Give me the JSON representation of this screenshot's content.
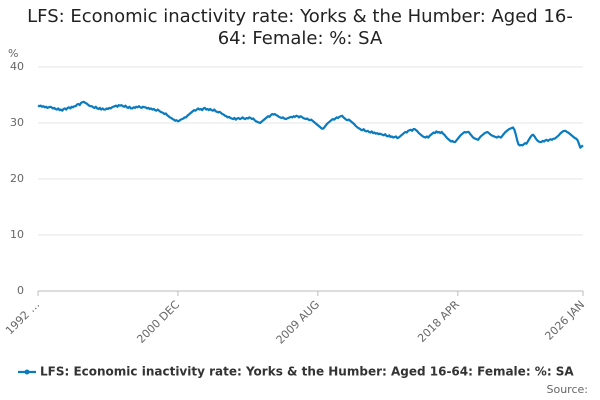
{
  "chart_data": {
    "type": "line",
    "title": "LFS: Economic inactivity rate: Yorks & the Humber: Aged 16-64: Female: %: SA",
    "y_label": "%",
    "source": "Source:",
    "ylim": [
      0,
      40
    ],
    "yticks": [
      0,
      10,
      20,
      30,
      40
    ],
    "grid": true,
    "legend": "bottom",
    "categories": [
      "1992 …",
      null,
      null,
      null,
      null,
      null,
      null,
      null,
      null,
      null,
      null,
      null,
      null,
      null,
      null,
      null,
      null,
      null,
      null,
      null,
      null,
      null,
      null,
      null,
      null,
      null,
      null,
      null,
      null,
      null,
      null,
      null,
      null,
      null,
      null,
      null,
      null,
      null,
      null,
      null,
      null,
      null,
      null,
      null,
      null,
      null,
      null,
      null,
      null,
      null,
      null,
      null,
      null,
      null,
      null,
      null,
      null,
      null,
      null,
      null,
      null,
      null,
      null,
      null,
      null,
      null,
      null,
      null,
      null,
      null,
      null,
      null,
      null,
      null,
      null,
      null,
      null,
      null,
      null,
      null,
      null,
      null,
      null,
      null,
      null,
      null,
      null,
      null,
      null,
      null,
      null,
      null,
      null,
      null,
      null,
      null,
      null,
      null,
      null,
      null,
      null,
      null,
      null,
      null,
      "2000 DEC",
      null,
      null,
      null,
      null,
      null,
      null,
      null,
      null,
      null,
      null,
      null,
      null,
      null,
      null,
      null,
      null,
      null,
      null,
      null,
      null,
      null,
      null,
      null,
      null,
      null,
      null,
      null,
      null,
      null,
      null,
      null,
      null,
      null,
      null,
      null,
      null,
      null,
      null,
      null,
      null,
      null,
      null,
      null,
      null,
      null,
      null,
      null,
      null,
      null,
      null,
      null,
      null,
      null,
      null,
      null,
      null,
      null,
      null,
      null,
      null,
      null,
      null,
      null,
      null,
      null,
      null,
      null,
      null,
      null,
      null,
      null,
      null,
      null,
      null,
      null,
      null,
      null,
      null,
      null,
      null,
      null,
      null,
      null,
      null,
      null,
      null,
      null,
      null,
      null,
      null,
      null,
      null,
      null,
      null,
      null,
      null,
      null,
      null,
      null,
      null,
      null,
      null,
      null,
      "2009 AUG",
      null,
      null,
      null,
      null,
      null,
      null,
      null,
      null,
      null,
      null,
      null,
      null,
      null,
      null,
      null,
      null,
      null,
      null,
      null,
      null,
      null,
      null,
      null,
      null,
      null,
      null,
      null,
      null,
      null,
      null,
      null,
      null,
      null,
      null,
      null,
      null,
      null,
      null,
      null,
      null,
      null,
      null,
      null,
      null,
      null,
      null,
      null,
      null,
      null,
      null,
      null,
      null,
      null,
      null,
      null,
      null,
      null,
      null,
      null,
      null,
      null,
      null,
      null,
      null,
      null,
      null,
      null,
      null,
      null,
      null,
      null,
      null,
      null,
      null,
      null,
      null,
      null,
      null,
      null,
      null,
      null,
      null,
      null,
      null,
      null,
      null,
      null,
      null,
      null,
      null,
      null,
      null,
      null,
      null,
      null,
      null,
      null,
      null,
      null,
      null,
      null,
      null,
      null,
      "2018 APR",
      null,
      null,
      null,
      null,
      null,
      null,
      null,
      null,
      null,
      null,
      null,
      null,
      null,
      null,
      null,
      null,
      null,
      null,
      null,
      null,
      null,
      null,
      null,
      null,
      null,
      null,
      null,
      null,
      null,
      null,
      null,
      null,
      null,
      null,
      null,
      null,
      null,
      null,
      null,
      null,
      null,
      null,
      null,
      null,
      null,
      null,
      null,
      null,
      null,
      null,
      null,
      null,
      null,
      null,
      null,
      null,
      null,
      null,
      null,
      null,
      null,
      null,
      null,
      null,
      null,
      null,
      null,
      null,
      null,
      null,
      null,
      null,
      null,
      null,
      null,
      null,
      null,
      null,
      null,
      null,
      null,
      null,
      null,
      null,
      null,
      null,
      null,
      null,
      null,
      null,
      null,
      null,
      "2026 JAN"
    ],
    "series": [
      {
        "name": "LFS: Economic inactivity rate: Yorks & the Humber: Aged 16-64: Female: %: SA",
        "color": "#0a7bbf",
        "values": [
          33.1,
          33.0,
          33.1,
          32.9,
          33.0,
          32.8,
          32.9,
          32.7,
          32.8,
          32.9,
          32.8,
          32.6,
          32.7,
          32.5,
          32.4,
          32.6,
          32.3,
          32.4,
          32.2,
          32.5,
          32.6,
          32.4,
          32.7,
          32.8,
          32.6,
          32.9,
          32.8,
          33.0,
          33.0,
          33.3,
          33.4,
          33.2,
          33.6,
          33.7,
          33.8,
          33.6,
          33.5,
          33.3,
          33.1,
          33.0,
          33.0,
          32.8,
          32.7,
          32.9,
          32.6,
          32.5,
          32.7,
          32.4,
          32.6,
          32.4,
          32.4,
          32.6,
          32.5,
          32.7,
          32.6,
          32.8,
          32.9,
          33.0,
          33.1,
          32.9,
          33.2,
          33.1,
          33.2,
          33.0,
          32.9,
          33.1,
          32.8,
          32.7,
          32.9,
          32.6,
          32.6,
          32.8,
          32.7,
          32.9,
          32.8,
          33.0,
          32.8,
          32.7,
          32.9,
          32.8,
          32.8,
          32.6,
          32.7,
          32.5,
          32.6,
          32.4,
          32.5,
          32.3,
          32.2,
          32.4,
          32.2,
          32.0,
          31.9,
          31.8,
          31.6,
          31.7,
          31.4,
          31.2,
          31.0,
          30.9,
          30.7,
          30.6,
          30.4,
          30.5,
          30.3,
          30.4,
          30.6,
          30.7,
          30.8,
          31.0,
          31.0,
          31.3,
          31.5,
          31.7,
          31.9,
          32.1,
          32.3,
          32.2,
          32.4,
          32.6,
          32.4,
          32.5,
          32.3,
          32.6,
          32.7,
          32.4,
          32.5,
          32.3,
          32.5,
          32.3,
          32.2,
          32.4,
          32.1,
          32.0,
          31.9,
          32.0,
          31.8,
          31.6,
          31.5,
          31.3,
          31.2,
          31.0,
          31.1,
          30.9,
          30.8,
          30.7,
          30.9,
          30.6,
          30.8,
          30.9,
          30.7,
          30.8,
          31.0,
          30.8,
          30.7,
          30.9,
          30.8,
          31.0,
          30.9,
          30.7,
          30.8,
          30.5,
          30.3,
          30.2,
          30.1,
          30.0,
          30.2,
          30.4,
          30.6,
          30.8,
          31.0,
          31.2,
          31.1,
          31.4,
          31.6,
          31.5,
          31.6,
          31.4,
          31.3,
          31.1,
          31.0,
          30.9,
          31.0,
          30.8,
          30.7,
          30.8,
          30.9,
          31.0,
          31.1,
          31.0,
          31.2,
          31.1,
          31.3,
          31.2,
          31.0,
          31.2,
          31.1,
          30.9,
          30.8,
          30.7,
          30.8,
          30.6,
          30.5,
          30.6,
          30.4,
          30.2,
          30.0,
          29.8,
          29.6,
          29.4,
          29.2,
          29.0,
          29.0,
          29.3,
          29.6,
          29.9,
          30.1,
          30.3,
          30.5,
          30.7,
          30.6,
          30.8,
          31.0,
          30.9,
          31.1,
          31.2,
          31.3,
          31.0,
          30.8,
          30.6,
          30.5,
          30.6,
          30.4,
          30.2,
          30.0,
          29.8,
          29.5,
          29.3,
          29.1,
          29.0,
          28.8,
          28.7,
          28.9,
          28.6,
          28.5,
          28.6,
          28.4,
          28.3,
          28.5,
          28.2,
          28.3,
          28.1,
          28.2,
          28.0,
          28.1,
          28.0,
          27.9,
          27.8,
          28.0,
          27.7,
          27.6,
          27.8,
          27.5,
          27.6,
          27.4,
          27.5,
          27.6,
          27.3,
          27.4,
          27.6,
          27.8,
          28.0,
          28.2,
          28.4,
          28.3,
          28.6,
          28.7,
          28.8,
          28.6,
          28.9,
          28.9,
          28.7,
          28.5,
          28.2,
          28.0,
          27.8,
          27.6,
          27.5,
          27.4,
          27.6,
          27.4,
          27.7,
          27.9,
          28.1,
          28.3,
          28.2,
          28.5,
          28.3,
          28.4,
          28.2,
          28.4,
          28.1,
          27.9,
          27.6,
          27.3,
          27.1,
          26.9,
          26.7,
          26.8,
          26.6,
          26.6,
          26.9,
          27.2,
          27.5,
          27.8,
          28.0,
          28.2,
          28.4,
          28.3,
          28.4,
          28.4,
          28.1,
          27.8,
          27.5,
          27.3,
          27.2,
          27.1,
          27.0,
          27.3,
          27.6,
          27.8,
          28.0,
          28.2,
          28.3,
          28.4,
          28.2,
          28.0,
          27.8,
          27.7,
          27.6,
          27.5,
          27.4,
          27.6,
          27.5,
          27.4,
          27.7,
          28.0,
          28.3,
          28.5,
          28.7,
          28.9,
          29.0,
          29.1,
          29.2,
          28.8,
          28.0,
          27.0,
          26.2,
          26.0,
          26.1,
          26.0,
          26.2,
          26.4,
          26.3,
          26.7,
          27.1,
          27.5,
          27.8,
          27.9,
          27.6,
          27.2,
          26.9,
          26.7,
          26.6,
          26.6,
          26.8,
          26.7,
          26.9,
          27.0,
          26.8,
          27.0,
          27.1,
          27.0,
          27.2,
          27.2,
          27.4,
          27.6,
          27.8,
          28.1,
          28.3,
          28.5,
          28.6,
          28.6,
          28.4,
          28.3,
          28.1,
          27.9,
          27.7,
          27.5,
          27.3,
          27.2,
          26.9,
          26.3,
          25.6,
          25.8,
          26.0
        ]
      }
    ]
  }
}
